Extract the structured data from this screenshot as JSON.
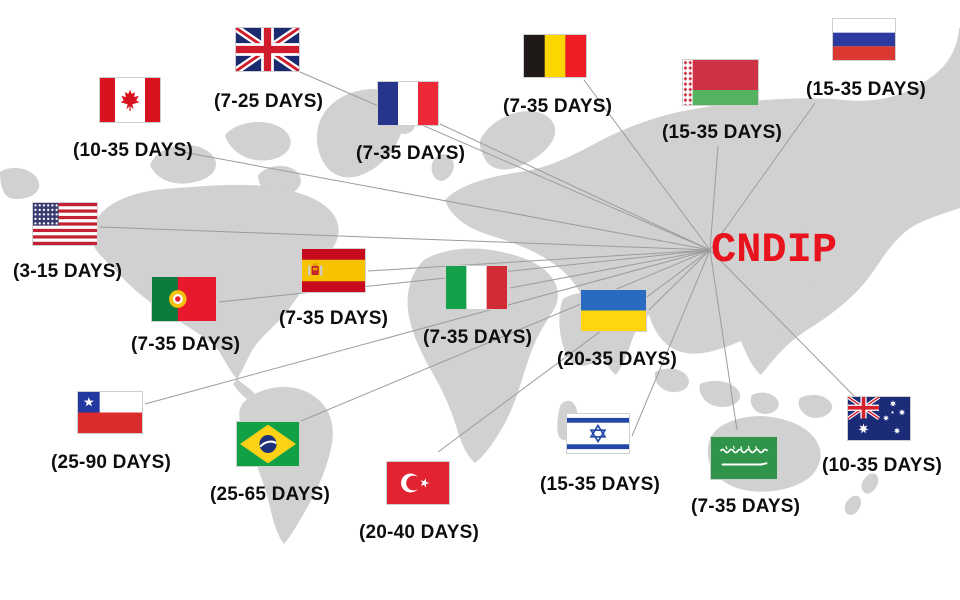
{
  "brand": {
    "label": "CNDIP",
    "color": "#e8131d"
  },
  "map": {
    "land_color": "#d1d1d1",
    "sea_color": "#ffffff",
    "route_line_color": "#9c9c9c"
  },
  "destinations": [
    {
      "id": "canada",
      "icon": "canada-flag-icon",
      "country": "Canada",
      "days": "(10-35 DAYS)"
    },
    {
      "id": "uk",
      "icon": "united-kingdom-flag-icon",
      "country": "United Kingdom",
      "days": "(7-25 DAYS)"
    },
    {
      "id": "france",
      "icon": "france-flag-icon",
      "country": "France",
      "days": "(7-35 DAYS)"
    },
    {
      "id": "belgium",
      "icon": "belgium-flag-icon",
      "country": "Belgium",
      "days": "(7-35 DAYS)"
    },
    {
      "id": "belarus",
      "icon": "belarus-flag-icon",
      "country": "Belarus",
      "days": "(15-35 DAYS)"
    },
    {
      "id": "russia",
      "icon": "russia-flag-icon",
      "country": "Russia",
      "days": "(15-35 DAYS)"
    },
    {
      "id": "usa",
      "icon": "usa-flag-icon",
      "country": "United States",
      "days": "(3-15 DAYS)"
    },
    {
      "id": "portugal",
      "icon": "portugal-flag-icon",
      "country": "Portugal",
      "days": "(7-35 DAYS)"
    },
    {
      "id": "spain",
      "icon": "spain-flag-icon",
      "country": "Spain",
      "days": "(7-35 DAYS)"
    },
    {
      "id": "italy",
      "icon": "italy-flag-icon",
      "country": "Italy",
      "days": "(7-35 DAYS)"
    },
    {
      "id": "ukraine",
      "icon": "ukraine-flag-icon",
      "country": "Ukraine",
      "days": "(20-35 DAYS)"
    },
    {
      "id": "chile",
      "icon": "chile-flag-icon",
      "country": "Chile",
      "days": "(25-90 DAYS)"
    },
    {
      "id": "brazil",
      "icon": "brazil-flag-icon",
      "country": "Brazil",
      "days": "(25-65 DAYS)"
    },
    {
      "id": "turkey",
      "icon": "turkey-flag-icon",
      "country": "Turkey",
      "days": "(20-40 DAYS)"
    },
    {
      "id": "israel",
      "icon": "israel-flag-icon",
      "country": "Israel",
      "days": "(15-35 DAYS)"
    },
    {
      "id": "saudi_arabia",
      "icon": "saudi-arabia-flag-icon",
      "country": "Saudi Arabia",
      "days": "(7-35 DAYS)"
    },
    {
      "id": "australia",
      "icon": "australia-flag-icon",
      "country": "Australia",
      "days": "(10-35 DAYS)"
    }
  ]
}
